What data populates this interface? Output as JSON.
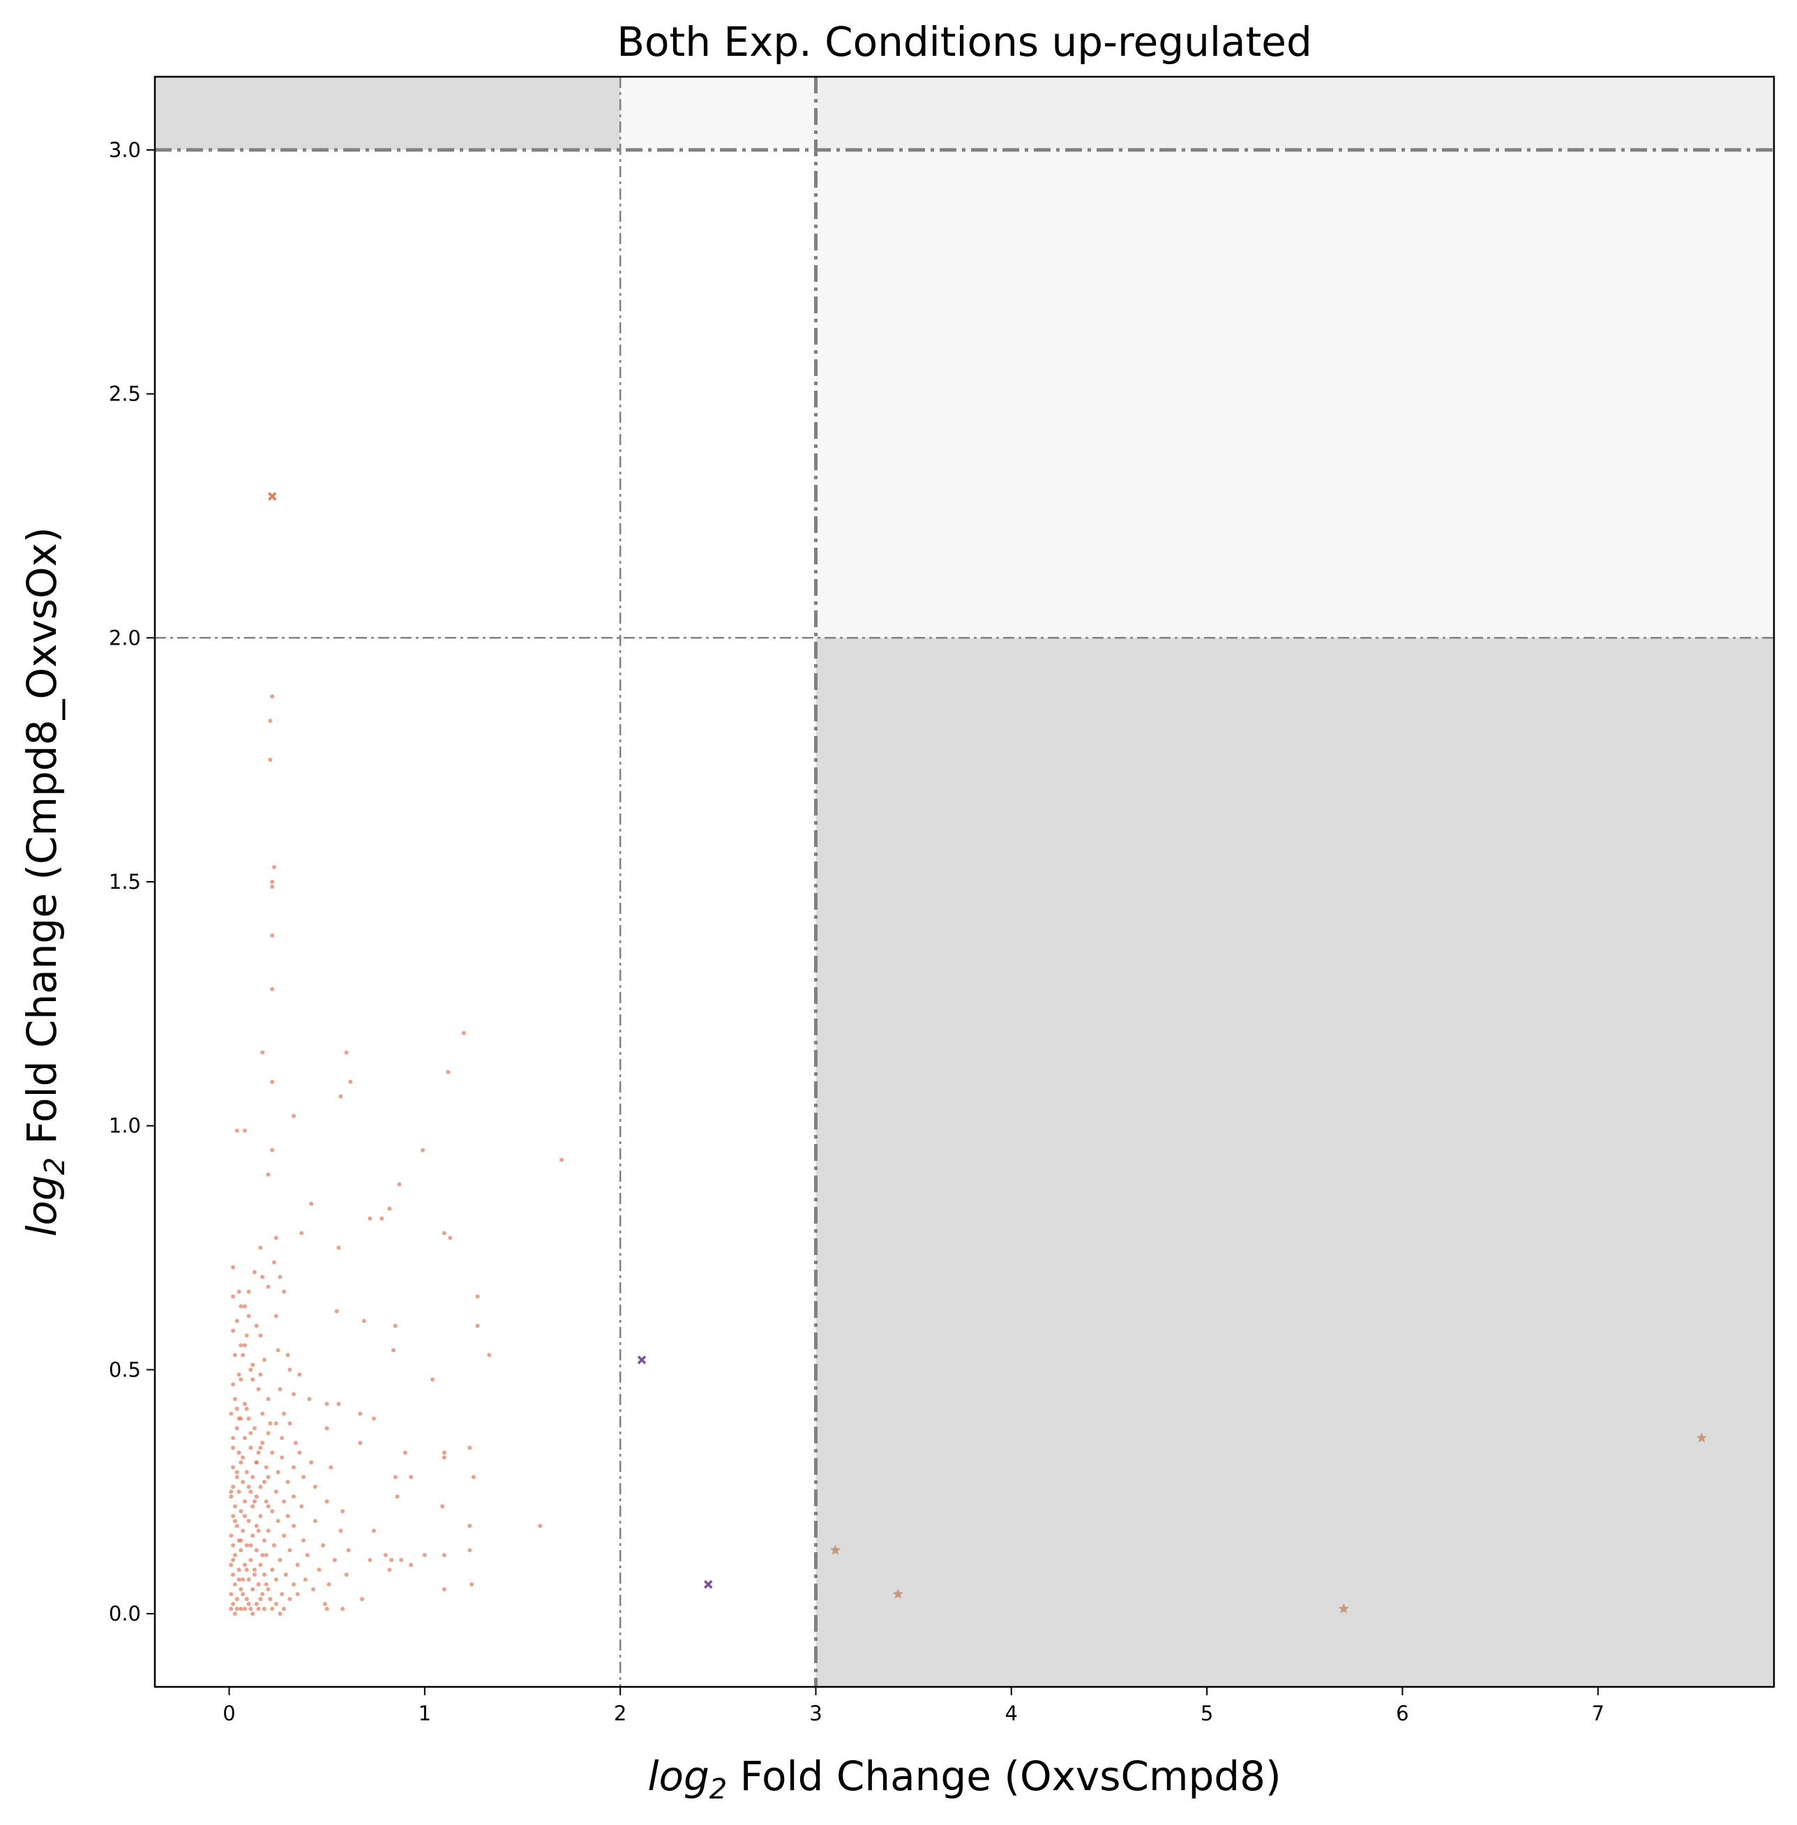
{
  "chart_data": {
    "type": "scatter",
    "title": "Both Exp. Conditions up-regulated",
    "xlabel": {
      "prefix": "log",
      "sub": "2",
      "rest": " Fold Change (OxvsCmpd8)"
    },
    "ylabel": {
      "prefix": "log",
      "sub": "2",
      "rest": " Fold Change (Cmpd8_OxvsOx)"
    },
    "xlim": [
      -0.38,
      7.9
    ],
    "ylim": [
      -0.15,
      3.15
    ],
    "xticks": [
      0,
      1,
      2,
      3,
      4,
      5,
      6,
      7
    ],
    "xtick_labels": [
      "0",
      "1",
      "2",
      "3",
      "4",
      "5",
      "6",
      "7"
    ],
    "yticks": [
      0.0,
      0.5,
      1.0,
      1.5,
      2.0,
      2.5,
      3.0
    ],
    "ytick_labels": [
      "0.0",
      "0.5",
      "1.0",
      "1.5",
      "2.0",
      "2.5",
      "3.0"
    ],
    "grid": false,
    "shaded_regions": [
      {
        "x": [
          -0.38,
          2
        ],
        "y": [
          3.0,
          3.15
        ],
        "color": "#dcdcdc"
      },
      {
        "x": [
          2,
          3
        ],
        "y": [
          3.0,
          3.15
        ],
        "color": "#f7f7f7"
      },
      {
        "x": [
          3,
          7.9
        ],
        "y": [
          3.0,
          3.15
        ],
        "color": "#efefef"
      },
      {
        "x": [
          3,
          7.9
        ],
        "y": [
          2.0,
          3.0
        ],
        "color": "#f7f7f7"
      },
      {
        "x": [
          3,
          7.9
        ],
        "y": [
          -0.15,
          2.0
        ],
        "color": "#dcdcdc"
      }
    ],
    "threshold_lines": [
      {
        "orient": "v",
        "value": 2,
        "style": "thin"
      },
      {
        "orient": "v",
        "value": 3,
        "style": "thick"
      },
      {
        "orient": "h",
        "value": 2,
        "style": "thin"
      },
      {
        "orient": "h",
        "value": 3,
        "style": "thick"
      }
    ],
    "colors": {
      "main": "#e07b5a",
      "purple": "#7b4f9e",
      "tan": "#c49a7a",
      "line": "#808080"
    },
    "series": [
      {
        "marker": "dot",
        "color": "#e07b5a",
        "points": [
          [
            0.22,
            1.88
          ],
          [
            0.21,
            1.83
          ],
          [
            0.21,
            1.75
          ],
          [
            0.23,
            1.53
          ],
          [
            0.22,
            1.5
          ],
          [
            0.22,
            1.49
          ],
          [
            0.22,
            1.39
          ],
          [
            0.22,
            1.28
          ],
          [
            0.17,
            1.15
          ],
          [
            0.6,
            1.15
          ],
          [
            0.22,
            1.09
          ],
          [
            0.62,
            1.09
          ],
          [
            0.57,
            1.06
          ],
          [
            1.2,
            1.19
          ],
          [
            1.12,
            1.11
          ],
          [
            0.33,
            1.02
          ],
          [
            0.04,
            0.99
          ],
          [
            0.08,
            0.99
          ],
          [
            0.99,
            0.95
          ],
          [
            1.7,
            0.93
          ],
          [
            0.22,
            0.95
          ],
          [
            0.2,
            0.9
          ],
          [
            0.87,
            0.88
          ],
          [
            0.42,
            0.84
          ],
          [
            0.82,
            0.83
          ],
          [
            0.72,
            0.81
          ],
          [
            0.78,
            0.81
          ],
          [
            0.37,
            0.78
          ],
          [
            0.24,
            0.77
          ],
          [
            1.1,
            0.78
          ],
          [
            1.13,
            0.77
          ],
          [
            0.16,
            0.75
          ],
          [
            0.56,
            0.75
          ],
          [
            0.23,
            0.72
          ],
          [
            0.02,
            0.71
          ],
          [
            0.13,
            0.7
          ],
          [
            0.26,
            0.69
          ],
          [
            0.2,
            0.67
          ],
          [
            0.1,
            0.66
          ],
          [
            0.28,
            0.66
          ],
          [
            1.27,
            0.65
          ],
          [
            0.02,
            0.65
          ],
          [
            0.06,
            0.63
          ],
          [
            0.08,
            0.63
          ],
          [
            0.55,
            0.62
          ],
          [
            0.04,
            0.6
          ],
          [
            0.69,
            0.6
          ],
          [
            0.24,
            0.61
          ],
          [
            1.27,
            0.59
          ],
          [
            0.02,
            0.58
          ],
          [
            0.09,
            0.57
          ],
          [
            0.85,
            0.59
          ],
          [
            0.16,
            0.57
          ],
          [
            0.06,
            0.55
          ],
          [
            0.25,
            0.54
          ],
          [
            0.03,
            0.53
          ],
          [
            0.07,
            0.53
          ],
          [
            0.84,
            0.54
          ],
          [
            0.3,
            0.53
          ],
          [
            1.33,
            0.53
          ],
          [
            0.31,
            0.5
          ],
          [
            0.11,
            0.5
          ],
          [
            0.05,
            0.49
          ],
          [
            0.16,
            0.49
          ],
          [
            0.36,
            0.49
          ],
          [
            0.12,
            0.48
          ],
          [
            1.04,
            0.48
          ],
          [
            0.02,
            0.47
          ],
          [
            0.26,
            0.46
          ],
          [
            0.33,
            0.45
          ],
          [
            0.2,
            0.44
          ],
          [
            0.41,
            0.44
          ],
          [
            0.08,
            0.43
          ],
          [
            0.5,
            0.43
          ],
          [
            0.56,
            0.43
          ],
          [
            0.04,
            0.42
          ],
          [
            0.01,
            0.41
          ],
          [
            0.17,
            0.41
          ],
          [
            0.28,
            0.41
          ],
          [
            0.06,
            0.4
          ],
          [
            0.1,
            0.4
          ],
          [
            0.24,
            0.39
          ],
          [
            0.31,
            0.39
          ],
          [
            0.67,
            0.41
          ],
          [
            0.74,
            0.4
          ],
          [
            0.5,
            0.38
          ],
          [
            0.04,
            0.38
          ],
          [
            0.13,
            0.38
          ],
          [
            0.2,
            0.37
          ],
          [
            0.27,
            0.36
          ],
          [
            0.08,
            0.36
          ],
          [
            0.17,
            0.35
          ],
          [
            0.34,
            0.35
          ],
          [
            0.67,
            0.35
          ],
          [
            0.02,
            0.34
          ],
          [
            0.11,
            0.34
          ],
          [
            0.22,
            0.33
          ],
          [
            0.36,
            0.33
          ],
          [
            0.05,
            0.33
          ],
          [
            0.15,
            0.33
          ],
          [
            0.9,
            0.33
          ],
          [
            1.1,
            0.33
          ],
          [
            1.23,
            0.34
          ],
          [
            0.27,
            0.32
          ],
          [
            0.42,
            0.31
          ],
          [
            0.06,
            0.31
          ],
          [
            0.14,
            0.31
          ],
          [
            0.19,
            0.3
          ],
          [
            0.33,
            0.3
          ],
          [
            1.1,
            0.32
          ],
          [
            0.02,
            0.3
          ],
          [
            0.09,
            0.29
          ],
          [
            0.25,
            0.29
          ],
          [
            0.52,
            0.3
          ],
          [
            0.12,
            0.28
          ],
          [
            0.38,
            0.28
          ],
          [
            0.04,
            0.28
          ],
          [
            0.2,
            0.28
          ],
          [
            0.3,
            0.27
          ],
          [
            0.85,
            0.28
          ],
          [
            0.93,
            0.28
          ],
          [
            1.25,
            0.28
          ],
          [
            0.07,
            0.27
          ],
          [
            0.16,
            0.26
          ],
          [
            0.02,
            0.26
          ],
          [
            0.11,
            0.25
          ],
          [
            0.24,
            0.25
          ],
          [
            0.44,
            0.26
          ],
          [
            0.05,
            0.25
          ],
          [
            0.14,
            0.24
          ],
          [
            0.33,
            0.24
          ],
          [
            0.86,
            0.24
          ],
          [
            0.01,
            0.24
          ],
          [
            0.19,
            0.23
          ],
          [
            0.08,
            0.23
          ],
          [
            0.28,
            0.23
          ],
          [
            0.5,
            0.23
          ],
          [
            0.03,
            0.22
          ],
          [
            0.12,
            0.22
          ],
          [
            0.22,
            0.21
          ],
          [
            0.37,
            0.22
          ],
          [
            1.09,
            0.22
          ],
          [
            0.06,
            0.21
          ],
          [
            0.16,
            0.2
          ],
          [
            0.3,
            0.2
          ],
          [
            0.58,
            0.21
          ],
          [
            0.02,
            0.2
          ],
          [
            0.1,
            0.19
          ],
          [
            0.25,
            0.19
          ],
          [
            0.44,
            0.19
          ],
          [
            1.23,
            0.18
          ],
          [
            1.59,
            0.18
          ],
          [
            0.04,
            0.18
          ],
          [
            0.14,
            0.18
          ],
          [
            0.2,
            0.17
          ],
          [
            0.33,
            0.18
          ],
          [
            0.07,
            0.17
          ],
          [
            0.57,
            0.17
          ],
          [
            0.01,
            0.16
          ],
          [
            0.12,
            0.16
          ],
          [
            0.28,
            0.16
          ],
          [
            0.74,
            0.17
          ],
          [
            0.05,
            0.15
          ],
          [
            0.18,
            0.15
          ],
          [
            0.38,
            0.15
          ],
          [
            0.09,
            0.14
          ],
          [
            0.23,
            0.14
          ],
          [
            0.48,
            0.14
          ],
          [
            0.02,
            0.14
          ],
          [
            0.14,
            0.13
          ],
          [
            0.31,
            0.13
          ],
          [
            0.61,
            0.13
          ],
          [
            0.06,
            0.13
          ],
          [
            0.19,
            0.12
          ],
          [
            0.4,
            0.12
          ],
          [
            0.8,
            0.12
          ],
          [
            1.0,
            0.12
          ],
          [
            1.1,
            0.12
          ],
          [
            1.23,
            0.13
          ],
          [
            0.03,
            0.12
          ],
          [
            0.11,
            0.11
          ],
          [
            0.26,
            0.11
          ],
          [
            0.54,
            0.11
          ],
          [
            0.72,
            0.11
          ],
          [
            0.83,
            0.11
          ],
          [
            0.88,
            0.11
          ],
          [
            0.93,
            0.1
          ],
          [
            0.08,
            0.1
          ],
          [
            0.16,
            0.1
          ],
          [
            0.35,
            0.1
          ],
          [
            0.01,
            0.1
          ],
          [
            0.13,
            0.09
          ],
          [
            0.22,
            0.09
          ],
          [
            0.46,
            0.09
          ],
          [
            0.82,
            0.09
          ],
          [
            0.05,
            0.09
          ],
          [
            0.18,
            0.08
          ],
          [
            0.29,
            0.08
          ],
          [
            0.6,
            0.08
          ],
          [
            0.02,
            0.08
          ],
          [
            0.1,
            0.07
          ],
          [
            0.24,
            0.07
          ],
          [
            0.39,
            0.07
          ],
          [
            0.07,
            0.07
          ],
          [
            0.15,
            0.06
          ],
          [
            0.33,
            0.06
          ],
          [
            0.51,
            0.06
          ],
          [
            1.24,
            0.06
          ],
          [
            0.03,
            0.06
          ],
          [
            0.12,
            0.05
          ],
          [
            0.2,
            0.05
          ],
          [
            0.43,
            0.05
          ],
          [
            1.1,
            0.05
          ],
          [
            0.06,
            0.05
          ],
          [
            0.17,
            0.04
          ],
          [
            0.27,
            0.04
          ],
          [
            0.35,
            0.04
          ],
          [
            0.01,
            0.04
          ],
          [
            0.09,
            0.03
          ],
          [
            0.21,
            0.03
          ],
          [
            0.31,
            0.03
          ],
          [
            0.68,
            0.03
          ],
          [
            0.04,
            0.03
          ],
          [
            0.14,
            0.02
          ],
          [
            0.24,
            0.02
          ],
          [
            0.49,
            0.02
          ],
          [
            0.02,
            0.02
          ],
          [
            0.11,
            0.01
          ],
          [
            0.18,
            0.01
          ],
          [
            0.28,
            0.01
          ],
          [
            0.5,
            0.01
          ],
          [
            0.06,
            0.01
          ],
          [
            0.01,
            0.01
          ],
          [
            0.15,
            0.01
          ],
          [
            0.22,
            0.01
          ],
          [
            0.08,
            0.01
          ],
          [
            0.03,
            0.0
          ],
          [
            0.26,
            0.0
          ],
          [
            0.58,
            0.01
          ],
          [
            0.12,
            0.0
          ],
          [
            0.04,
            0.01
          ],
          [
            0.1,
            0.02
          ],
          [
            0.16,
            0.03
          ],
          [
            0.07,
            0.04
          ],
          [
            0.19,
            0.06
          ],
          [
            0.05,
            0.07
          ],
          [
            0.13,
            0.08
          ],
          [
            0.09,
            0.09
          ],
          [
            0.02,
            0.11
          ],
          [
            0.17,
            0.12
          ],
          [
            0.11,
            0.14
          ],
          [
            0.06,
            0.15
          ],
          [
            0.15,
            0.17
          ],
          [
            0.03,
            0.19
          ],
          [
            0.08,
            0.2
          ],
          [
            0.2,
            0.22
          ],
          [
            0.13,
            0.23
          ],
          [
            0.01,
            0.25
          ],
          [
            0.1,
            0.26
          ],
          [
            0.18,
            0.27
          ],
          [
            0.04,
            0.29
          ],
          [
            0.14,
            0.31
          ],
          [
            0.07,
            0.32
          ],
          [
            0.16,
            0.34
          ],
          [
            0.02,
            0.36
          ],
          [
            0.11,
            0.37
          ],
          [
            0.21,
            0.39
          ],
          [
            0.05,
            0.4
          ],
          [
            0.09,
            0.42
          ],
          [
            0.03,
            0.44
          ],
          [
            0.15,
            0.46
          ],
          [
            0.06,
            0.48
          ],
          [
            0.12,
            0.51
          ],
          [
            0.18,
            0.52
          ],
          [
            0.08,
            0.55
          ],
          [
            0.14,
            0.59
          ],
          [
            0.1,
            0.61
          ],
          [
            0.05,
            0.66
          ],
          [
            0.17,
            0.69
          ]
        ]
      },
      {
        "marker": "x",
        "color": "#e07b5a",
        "points": [
          [
            0.22,
            2.29
          ]
        ]
      },
      {
        "marker": "x",
        "color": "#7b4f9e",
        "points": [
          [
            2.11,
            0.52
          ],
          [
            2.45,
            0.06
          ]
        ]
      },
      {
        "marker": "star",
        "color": "#c49a7a",
        "points": [
          [
            3.1,
            0.13
          ],
          [
            3.42,
            0.04
          ],
          [
            5.7,
            0.01
          ],
          [
            7.53,
            0.36
          ]
        ]
      }
    ]
  }
}
